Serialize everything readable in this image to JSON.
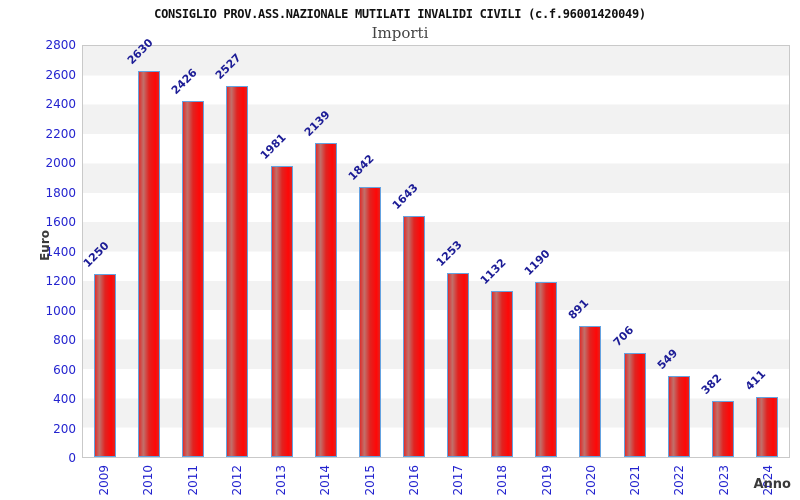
{
  "chart_data": {
    "type": "bar",
    "title": "CONSIGLIO PROV.ASS.NAZIONALE MUTILATI INVALIDI CIVILI (c.f.96001420049)",
    "subtitle": "Importi",
    "xlabel": "Anno",
    "ylabel": "Euro",
    "categories": [
      "2009",
      "2010",
      "2011",
      "2012",
      "2013",
      "2014",
      "2015",
      "2016",
      "2017",
      "2018",
      "2019",
      "2020",
      "2021",
      "2022",
      "2023",
      "2024"
    ],
    "values": [
      1250,
      2630,
      2426,
      2527,
      1981,
      2139,
      1842,
      1643,
      1253,
      1132,
      1190,
      891,
      706,
      549,
      382,
      411
    ],
    "ylim": [
      0,
      2800
    ],
    "yticks": [
      0,
      200,
      400,
      600,
      800,
      1000,
      1200,
      1400,
      1600,
      1800,
      2000,
      2200,
      2400,
      2600,
      2800
    ],
    "grid": "alternating-horizontal-bands",
    "legend": "none",
    "colors": {
      "bar_fill_dark": "#df2c2a",
      "bar_fill_highlight": "#c1716c",
      "bar_fill_mid": "#e02421",
      "bar_fill_bright": "#ff0707",
      "bar_border": "#64a2e0",
      "axis_tick_text": "#2424cf",
      "value_label_text": "#1c1c96",
      "band_shade": "#f2f2f2",
      "plot_border": "#c9c9c9",
      "axis_title_text": "#3a3a3a",
      "title_text": "#111111",
      "subtitle_text": "#444444"
    }
  }
}
